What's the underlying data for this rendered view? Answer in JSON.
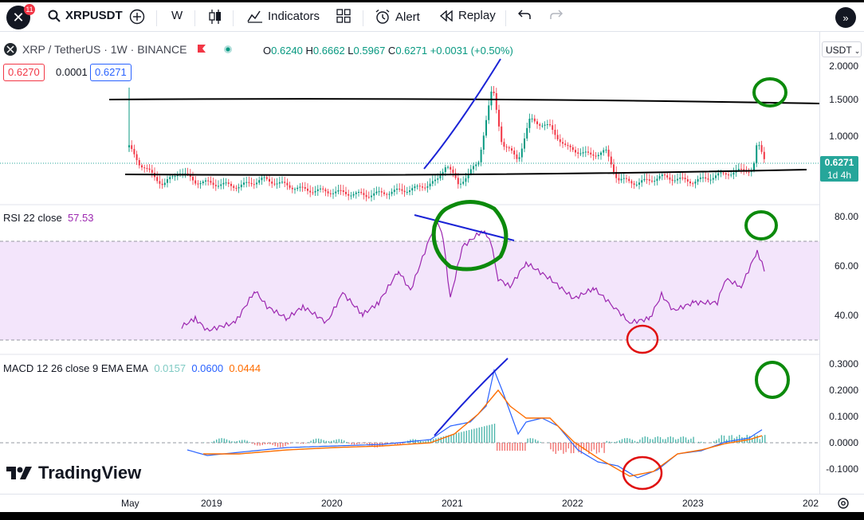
{
  "toolbar": {
    "notification_count": "11",
    "symbol": "XRPUSDT",
    "interval": "W",
    "indicators_label": "Indicators",
    "alert_label": "Alert",
    "replay_label": "Replay"
  },
  "legend": {
    "title": "XRP / TetherUS · 1W · BINANCE",
    "ohlc": {
      "o_label": "O",
      "o": "0.6240",
      "h_label": "H",
      "h": "0.6662",
      "l_label": "L",
      "l": "0.5967",
      "c_label": "C",
      "c": "0.6271",
      "change": "+0.0031 (+0.50%)"
    },
    "bid": "0.6270",
    "spread": "0.0001",
    "ask": "0.6271"
  },
  "price_axis": {
    "currency": "USDT",
    "labels": [
      "2.0000",
      "1.5000",
      "1.0000",
      "0.6271",
      "1d 4h"
    ],
    "current_price": "0.6271",
    "countdown": "1d 4h"
  },
  "rsi": {
    "label": "RSI 22 close",
    "value": "57.53",
    "axis": [
      "80.00",
      "60.00",
      "40.00"
    ]
  },
  "macd": {
    "label": "MACD 12 26 close 9 EMA EMA",
    "hist": "0.0157",
    "macd": "0.0600",
    "signal": "0.0444",
    "axis": [
      "0.3000",
      "0.2000",
      "0.1000",
      "0.0000",
      "-0.1000"
    ]
  },
  "time_axis": [
    "May",
    "2019",
    "2020",
    "2021",
    "2022",
    "2023",
    "202"
  ],
  "branding": "TradingView",
  "colors": {
    "up": "#089981",
    "down": "#f23645",
    "rsi": "#9c27b0",
    "macd": "#2962ff",
    "signal": "#ff6d00"
  }
}
